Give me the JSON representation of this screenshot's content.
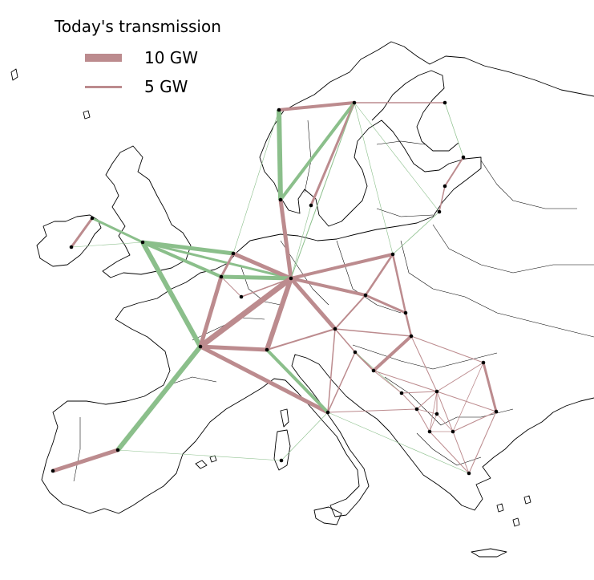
{
  "legend": {
    "title": "Today's transmission",
    "items": [
      {
        "label": "10 GW",
        "capacity_gw": 10
      },
      {
        "label": "5 GW",
        "capacity_gw": 5
      }
    ]
  },
  "colors": {
    "existing": "#bc8b8e",
    "expansion": "#8bbf8b",
    "node": "#000000",
    "coastline": "#000000"
  },
  "network": {
    "nodes": [
      {
        "id": "IE"
      },
      {
        "id": "NI"
      },
      {
        "id": "GB"
      },
      {
        "id": "BE"
      },
      {
        "id": "NL"
      },
      {
        "id": "LU"
      },
      {
        "id": "FR"
      },
      {
        "id": "PT"
      },
      {
        "id": "ES"
      },
      {
        "id": "SARD"
      },
      {
        "id": "CH"
      },
      {
        "id": "DE"
      },
      {
        "id": "DK_W"
      },
      {
        "id": "DK_E"
      },
      {
        "id": "NO"
      },
      {
        "id": "SE"
      },
      {
        "id": "FI"
      },
      {
        "id": "EE"
      },
      {
        "id": "LV"
      },
      {
        "id": "LT"
      },
      {
        "id": "PL"
      },
      {
        "id": "CZ"
      },
      {
        "id": "AT"
      },
      {
        "id": "SK"
      },
      {
        "id": "HU"
      },
      {
        "id": "IT"
      },
      {
        "id": "SI"
      },
      {
        "id": "HR"
      },
      {
        "id": "BA"
      },
      {
        "id": "RS"
      },
      {
        "id": "RO"
      },
      {
        "id": "BG"
      },
      {
        "id": "ME"
      },
      {
        "id": "AL"
      },
      {
        "id": "MK"
      },
      {
        "id": "GR"
      },
      {
        "id": "XK"
      }
    ],
    "links": [
      {
        "from": "IE",
        "to": "NI",
        "kind": "existing",
        "gw": 3
      },
      {
        "from": "NI",
        "to": "GB",
        "kind": "expansion",
        "gw": 3
      },
      {
        "from": "IE",
        "to": "GB",
        "kind": "expansion",
        "gw": 0.5
      },
      {
        "from": "GB",
        "to": "NL",
        "kind": "expansion",
        "gw": 5
      },
      {
        "from": "GB",
        "to": "BE",
        "kind": "expansion",
        "gw": 4
      },
      {
        "from": "GB",
        "to": "FR",
        "kind": "expansion",
        "gw": 6
      },
      {
        "from": "GB",
        "to": "DE",
        "kind": "expansion",
        "gw": 3
      },
      {
        "from": "NO",
        "to": "DK_W",
        "kind": "expansion",
        "gw": 6
      },
      {
        "from": "NO",
        "to": "NL",
        "kind": "expansion",
        "gw": 0.5
      },
      {
        "from": "NO",
        "to": "SE",
        "kind": "existing",
        "gw": 4
      },
      {
        "from": "SE",
        "to": "DK_W",
        "kind": "expansion",
        "gw": 4
      },
      {
        "from": "SE",
        "to": "DK_E",
        "kind": "existing",
        "gw": 3
      },
      {
        "from": "SE",
        "to": "DE",
        "kind": "expansion",
        "gw": 1
      },
      {
        "from": "SE",
        "to": "PL",
        "kind": "expansion",
        "gw": 0.5
      },
      {
        "from": "SE",
        "to": "FI",
        "kind": "existing",
        "gw": 1.5
      },
      {
        "from": "SE",
        "to": "LT",
        "kind": "expansion",
        "gw": 0.5
      },
      {
        "from": "FI",
        "to": "EE",
        "kind": "expansion",
        "gw": 0.7
      },
      {
        "from": "EE",
        "to": "LV",
        "kind": "existing",
        "gw": 2
      },
      {
        "from": "LV",
        "to": "LT",
        "kind": "existing",
        "gw": 1.5
      },
      {
        "from": "LT",
        "to": "PL",
        "kind": "expansion",
        "gw": 0.8
      },
      {
        "from": "DK_W",
        "to": "DE",
        "kind": "existing",
        "gw": 5
      },
      {
        "from": "DK_E",
        "to": "DE",
        "kind": "expansion",
        "gw": 0.6
      },
      {
        "from": "NL",
        "to": "BE",
        "kind": "existing",
        "gw": 3
      },
      {
        "from": "NL",
        "to": "DE",
        "kind": "existing",
        "gw": 5
      },
      {
        "from": "BE",
        "to": "DE",
        "kind": "expansion",
        "gw": 5
      },
      {
        "from": "BE",
        "to": "FR",
        "kind": "existing",
        "gw": 5
      },
      {
        "from": "BE",
        "to": "LU",
        "kind": "existing",
        "gw": 1
      },
      {
        "from": "LU",
        "to": "DE",
        "kind": "existing",
        "gw": 1.5
      },
      {
        "from": "FR",
        "to": "DE",
        "kind": "existing",
        "gw": 7
      },
      {
        "from": "FR",
        "to": "CH",
        "kind": "existing",
        "gw": 5
      },
      {
        "from": "FR",
        "to": "ES",
        "kind": "expansion",
        "gw": 6
      },
      {
        "from": "FR",
        "to": "IT",
        "kind": "existing",
        "gw": 5
      },
      {
        "from": "ES",
        "to": "PT",
        "kind": "existing",
        "gw": 5
      },
      {
        "from": "ES",
        "to": "SARD",
        "kind": "expansion",
        "gw": 0.5
      },
      {
        "from": "CH",
        "to": "DE",
        "kind": "existing",
        "gw": 6
      },
      {
        "from": "CH",
        "to": "IT",
        "kind": "expansion",
        "gw": 4
      },
      {
        "from": "CH",
        "to": "AT",
        "kind": "existing",
        "gw": 2
      },
      {
        "from": "DE",
        "to": "PL",
        "kind": "existing",
        "gw": 4
      },
      {
        "from": "DE",
        "to": "CZ",
        "kind": "existing",
        "gw": 4
      },
      {
        "from": "DE",
        "to": "AT",
        "kind": "existing",
        "gw": 5
      },
      {
        "from": "PL",
        "to": "CZ",
        "kind": "existing",
        "gw": 2.5
      },
      {
        "from": "PL",
        "to": "SK",
        "kind": "existing",
        "gw": 2.5
      },
      {
        "from": "CZ",
        "to": "SK",
        "kind": "existing",
        "gw": 3
      },
      {
        "from": "CZ",
        "to": "AT",
        "kind": "existing",
        "gw": 2
      },
      {
        "from": "SK",
        "to": "HU",
        "kind": "existing",
        "gw": 2.5
      },
      {
        "from": "AT",
        "to": "HU",
        "kind": "existing",
        "gw": 1.5
      },
      {
        "from": "AT",
        "to": "IT",
        "kind": "existing",
        "gw": 1.5
      },
      {
        "from": "AT",
        "to": "SI",
        "kind": "existing",
        "gw": 1.5
      },
      {
        "from": "IT",
        "to": "SI",
        "kind": "existing",
        "gw": 1.5
      },
      {
        "from": "IT",
        "to": "ME",
        "kind": "existing",
        "gw": 1
      },
      {
        "from": "IT",
        "to": "GR",
        "kind": "expansion",
        "gw": 0.5
      },
      {
        "from": "IT",
        "to": "SARD",
        "kind": "expansion",
        "gw": 0.5
      },
      {
        "from": "SI",
        "to": "HR",
        "kind": "existing",
        "gw": 2
      },
      {
        "from": "SI",
        "to": "BA",
        "kind": "expansion",
        "gw": 0.5
      },
      {
        "from": "HU",
        "to": "HR",
        "kind": "existing",
        "gw": 4
      },
      {
        "from": "HU",
        "to": "RS",
        "kind": "existing",
        "gw": 1
      },
      {
        "from": "HU",
        "to": "RO",
        "kind": "existing",
        "gw": 1
      },
      {
        "from": "HR",
        "to": "BA",
        "kind": "existing",
        "gw": 1
      },
      {
        "from": "HR",
        "to": "RS",
        "kind": "existing",
        "gw": 1
      },
      {
        "from": "BA",
        "to": "RS",
        "kind": "existing",
        "gw": 1
      },
      {
        "from": "BA",
        "to": "ME",
        "kind": "existing",
        "gw": 1
      },
      {
        "from": "RS",
        "to": "RO",
        "kind": "existing",
        "gw": 1
      },
      {
        "from": "RS",
        "to": "BG",
        "kind": "existing",
        "gw": 1
      },
      {
        "from": "RS",
        "to": "MK",
        "kind": "existing",
        "gw": 1
      },
      {
        "from": "RS",
        "to": "ME",
        "kind": "existing",
        "gw": 1
      },
      {
        "from": "RS",
        "to": "XK",
        "kind": "existing",
        "gw": 1
      },
      {
        "from": "RS",
        "to": "AL",
        "kind": "existing",
        "gw": 0.8
      },
      {
        "from": "RO",
        "to": "BG",
        "kind": "existing",
        "gw": 3
      },
      {
        "from": "RO",
        "to": "MK",
        "kind": "existing",
        "gw": 0.8
      },
      {
        "from": "BG",
        "to": "MK",
        "kind": "existing",
        "gw": 1
      },
      {
        "from": "BG",
        "to": "GR",
        "kind": "existing",
        "gw": 1
      },
      {
        "from": "ME",
        "to": "AL",
        "kind": "existing",
        "gw": 1
      },
      {
        "from": "ME",
        "to": "XK",
        "kind": "existing",
        "gw": 0.8
      },
      {
        "from": "AL",
        "to": "MK",
        "kind": "existing",
        "gw": 0.8
      },
      {
        "from": "AL",
        "to": "GR",
        "kind": "existing",
        "gw": 1
      },
      {
        "from": "MK",
        "to": "GR",
        "kind": "existing",
        "gw": 1
      },
      {
        "from": "XK",
        "to": "MK",
        "kind": "existing",
        "gw": 0.8
      },
      {
        "from": "XK",
        "to": "AL",
        "kind": "existing",
        "gw": 0.8
      }
    ]
  }
}
